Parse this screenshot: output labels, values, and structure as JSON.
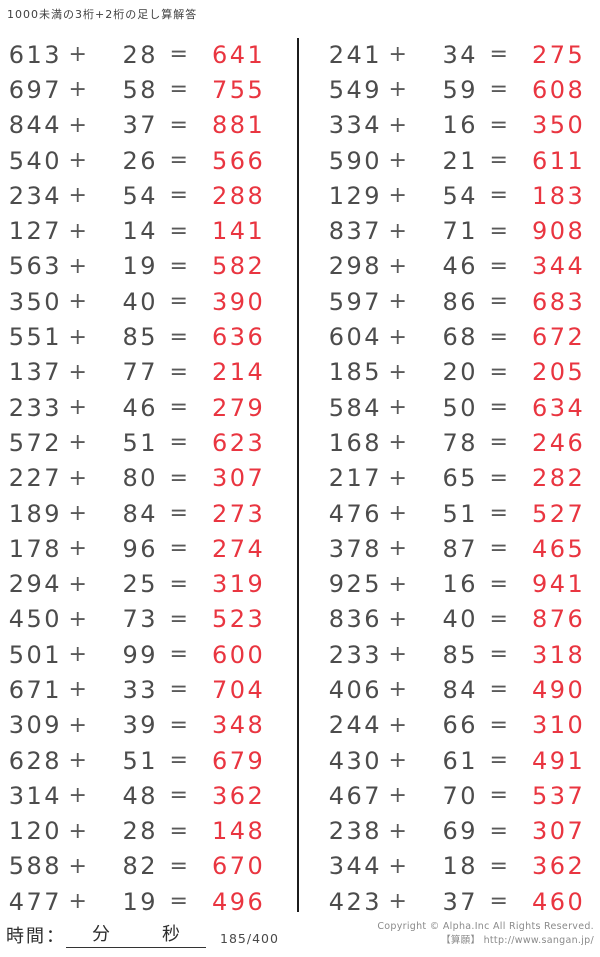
{
  "title": "1000未満の3桁+2桁の足し算解答",
  "symbols": {
    "plus": "+",
    "equals": "="
  },
  "problems": {
    "left": [
      {
        "a": "613",
        "b": "28",
        "ans": "641"
      },
      {
        "a": "697",
        "b": "58",
        "ans": "755"
      },
      {
        "a": "844",
        "b": "37",
        "ans": "881"
      },
      {
        "a": "540",
        "b": "26",
        "ans": "566"
      },
      {
        "a": "234",
        "b": "54",
        "ans": "288"
      },
      {
        "a": "127",
        "b": "14",
        "ans": "141"
      },
      {
        "a": "563",
        "b": "19",
        "ans": "582"
      },
      {
        "a": "350",
        "b": "40",
        "ans": "390"
      },
      {
        "a": "551",
        "b": "85",
        "ans": "636"
      },
      {
        "a": "137",
        "b": "77",
        "ans": "214"
      },
      {
        "a": "233",
        "b": "46",
        "ans": "279"
      },
      {
        "a": "572",
        "b": "51",
        "ans": "623"
      },
      {
        "a": "227",
        "b": "80",
        "ans": "307"
      },
      {
        "a": "189",
        "b": "84",
        "ans": "273"
      },
      {
        "a": "178",
        "b": "96",
        "ans": "274"
      },
      {
        "a": "294",
        "b": "25",
        "ans": "319"
      },
      {
        "a": "450",
        "b": "73",
        "ans": "523"
      },
      {
        "a": "501",
        "b": "99",
        "ans": "600"
      },
      {
        "a": "671",
        "b": "33",
        "ans": "704"
      },
      {
        "a": "309",
        "b": "39",
        "ans": "348"
      },
      {
        "a": "628",
        "b": "51",
        "ans": "679"
      },
      {
        "a": "314",
        "b": "48",
        "ans": "362"
      },
      {
        "a": "120",
        "b": "28",
        "ans": "148"
      },
      {
        "a": "588",
        "b": "82",
        "ans": "670"
      },
      {
        "a": "477",
        "b": "19",
        "ans": "496"
      }
    ],
    "right": [
      {
        "a": "241",
        "b": "34",
        "ans": "275"
      },
      {
        "a": "549",
        "b": "59",
        "ans": "608"
      },
      {
        "a": "334",
        "b": "16",
        "ans": "350"
      },
      {
        "a": "590",
        "b": "21",
        "ans": "611"
      },
      {
        "a": "129",
        "b": "54",
        "ans": "183"
      },
      {
        "a": "837",
        "b": "71",
        "ans": "908"
      },
      {
        "a": "298",
        "b": "46",
        "ans": "344"
      },
      {
        "a": "597",
        "b": "86",
        "ans": "683"
      },
      {
        "a": "604",
        "b": "68",
        "ans": "672"
      },
      {
        "a": "185",
        "b": "20",
        "ans": "205"
      },
      {
        "a": "584",
        "b": "50",
        "ans": "634"
      },
      {
        "a": "168",
        "b": "78",
        "ans": "246"
      },
      {
        "a": "217",
        "b": "65",
        "ans": "282"
      },
      {
        "a": "476",
        "b": "51",
        "ans": "527"
      },
      {
        "a": "378",
        "b": "87",
        "ans": "465"
      },
      {
        "a": "925",
        "b": "16",
        "ans": "941"
      },
      {
        "a": "836",
        "b": "40",
        "ans": "876"
      },
      {
        "a": "233",
        "b": "85",
        "ans": "318"
      },
      {
        "a": "406",
        "b": "84",
        "ans": "490"
      },
      {
        "a": "244",
        "b": "66",
        "ans": "310"
      },
      {
        "a": "430",
        "b": "61",
        "ans": "491"
      },
      {
        "a": "467",
        "b": "70",
        "ans": "537"
      },
      {
        "a": "238",
        "b": "69",
        "ans": "307"
      },
      {
        "a": "344",
        "b": "18",
        "ans": "362"
      },
      {
        "a": "423",
        "b": "37",
        "ans": "460"
      }
    ]
  },
  "footer": {
    "time_label": "時間：",
    "minutes_label": "分",
    "seconds_label": "秒",
    "sheet_number": "185/400",
    "copyright_line1": "Copyright © Alpha.Inc All Rights Reserved.",
    "copyright_line2": "【算願】 http://www.sangan.jp/"
  },
  "colors": {
    "answer": "#e93540",
    "problem": "#4c4c4c",
    "operator": "#5a5a5a",
    "divider": "#1c1c1c",
    "footer_text": "#8a8a8a",
    "title": "#3f3f3f"
  }
}
